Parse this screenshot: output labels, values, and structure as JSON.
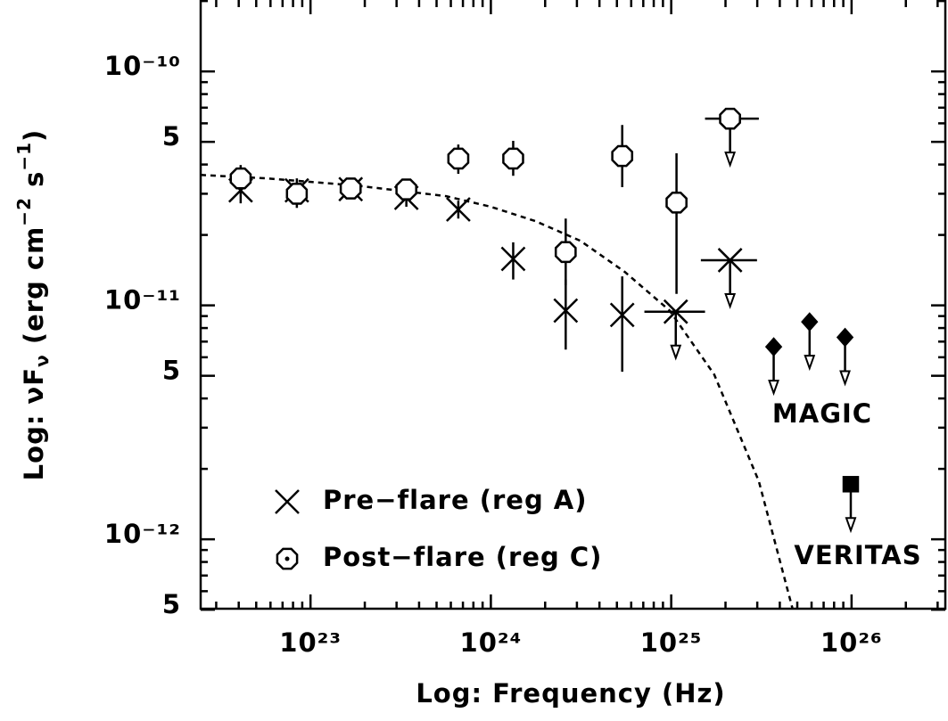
{
  "chart_data": {
    "type": "scatter",
    "xlabel": "Log: Frequency (Hz)",
    "ylabel": [
      "Log: νF",
      "ν",
      " (erg cm",
      "−2",
      " s",
      "−1",
      ")"
    ],
    "xscale": "log",
    "yscale": "log",
    "xlim": [
      2.46e+22,
      3.31e+26
    ],
    "ylim": [
      5.05e-13,
      2.02e-10
    ],
    "xticks": [
      {
        "value": 1e+23,
        "label": "10²³"
      },
      {
        "value": 1e+24,
        "label": "10²⁴"
      },
      {
        "value": 1e+25,
        "label": "10²⁵"
      },
      {
        "value": 1e+26,
        "label": "10²⁶"
      }
    ],
    "xminor_ticks": [
      3e+22,
      4e+22,
      5e+22,
      6e+22,
      7e+22,
      8e+22,
      9e+22,
      2e+23,
      3e+23,
      4e+23,
      5e+23,
      6e+23,
      7e+23,
      8e+23,
      9e+23,
      2e+24,
      3e+24,
      4e+24,
      5e+24,
      6e+24,
      7e+24,
      8e+24,
      9e+24,
      2e+25,
      3e+25,
      4e+25,
      5e+25,
      6e+25,
      7e+25,
      8e+25,
      9e+25,
      2e+26,
      3e+26
    ],
    "yticks": [
      {
        "value": 1e-10,
        "label": "10⁻¹⁰"
      },
      {
        "value": 5e-11,
        "label": "5"
      },
      {
        "value": 1e-11,
        "label": "10⁻¹¹"
      },
      {
        "value": 5e-12,
        "label": "5"
      },
      {
        "value": 1e-12,
        "label": "10⁻¹²"
      },
      {
        "value": 5e-13,
        "label": "5"
      }
    ],
    "yminor_ticks": [
      6e-13,
      7e-13,
      8e-13,
      9e-13,
      2e-12,
      3e-12,
      4e-12,
      6e-12,
      7e-12,
      8e-12,
      9e-12,
      2e-11,
      3e-11,
      4e-11,
      6e-11,
      7e-11,
      8e-11,
      9e-11,
      2e-10
    ],
    "series": [
      {
        "name": "Pre−flare (reg A)",
        "marker": "x",
        "color": "#000000",
        "x": [
          4.1e+22,
          8.4e+22,
          1.67e+23,
          3.4e+23,
          6.6e+23,
          1.33e+24,
          2.6e+24,
          5.35e+24,
          1.06e+25,
          2.12e+25
        ],
        "values": [
          3.1e-11,
          3.1e-11,
          3.14e-11,
          2.88e-11,
          2.57e-11,
          1.58e-11,
          9.5e-12,
          9.1e-12,
          9.4e-12,
          1.56e-11
        ],
        "ylo": [
          2.73e-11,
          2.61e-11,
          2.88e-11,
          2.64e-11,
          2.35e-11,
          1.29e-11,
          6.47e-12,
          5.2e-12,
          null,
          null
        ],
        "yhi": [
          3.58e-11,
          3.49e-11,
          3.4e-11,
          3.14e-11,
          2.8e-11,
          1.86e-11,
          1.29e-11,
          1.33e-11,
          null,
          null
        ],
        "xlo": [
          null,
          null,
          null,
          null,
          null,
          null,
          null,
          null,
          7.1e+24,
          1.46e+25
        ],
        "xhi": [
          null,
          null,
          null,
          null,
          null,
          null,
          null,
          null,
          1.54e+25,
          2.99e+25
        ],
        "upper_limit": [
          false,
          false,
          false,
          false,
          false,
          false,
          false,
          false,
          true,
          true
        ]
      },
      {
        "name": "Post−flare (reg C)",
        "marker": "octagon",
        "color": "#000000",
        "x": [
          4.1e+22,
          8.4e+22,
          1.67e+23,
          3.4e+23,
          6.6e+23,
          1.33e+24,
          2.6e+24,
          5.35e+24,
          1.07e+25,
          2.12e+25
        ],
        "values": [
          3.49e-11,
          3e-11,
          3.16e-11,
          3.13e-11,
          4.24e-11,
          4.24e-11,
          1.69e-11,
          4.35e-11,
          2.75e-11,
          6.28e-11
        ],
        "ylo": [
          3.06e-11,
          2.73e-11,
          null,
          null,
          3.65e-11,
          3.58e-11,
          1.22e-11,
          3.2e-11,
          1.12e-11,
          null
        ],
        "yhi": [
          3.98e-11,
          3.34e-11,
          null,
          null,
          4.87e-11,
          5.05e-11,
          2.35e-11,
          5.9e-11,
          4.47e-11,
          null
        ],
        "xlo": [
          null,
          null,
          null,
          null,
          null,
          null,
          null,
          null,
          null,
          1.54e+25
        ],
        "xhi": [
          null,
          null,
          null,
          null,
          null,
          null,
          null,
          null,
          null,
          3.06e+25
        ],
        "upper_limit": [
          false,
          false,
          false,
          false,
          false,
          false,
          false,
          false,
          false,
          true
        ]
      },
      {
        "name": "MAGIC",
        "marker": "diamond",
        "color": "#000000",
        "x": [
          3.7e+25,
          5.85e+25,
          9.2e+25
        ],
        "values": [
          6.65e-12,
          8.5e-12,
          7.3e-12
        ],
        "upper_limit": [
          true,
          true,
          true
        ]
      },
      {
        "name": "VERITAS",
        "marker": "square",
        "color": "#000000",
        "x": [
          9.9e+25
        ],
        "values": [
          1.72e-12
        ],
        "upper_limit": [
          true
        ]
      }
    ],
    "curve": {
      "style": "dashed",
      "color": "#000000",
      "x": [
        2.46e+22,
        5.78e+22,
        1.81e+23,
        5.65e+23,
        1e+24,
        1.77e+24,
        3.13e+24,
        5.53e+24,
        9.8e+24,
        1.73e+25,
        3.06e+25,
        4.71e+25
      ],
      "y": [
        3.61e-11,
        3.49e-11,
        3.25e-11,
        2.93e-11,
        2.64e-11,
        2.29e-11,
        1.89e-11,
        1.39e-11,
        9.5e-12,
        5.07e-12,
        1.77e-12,
        5.05e-13
      ]
    }
  }
}
